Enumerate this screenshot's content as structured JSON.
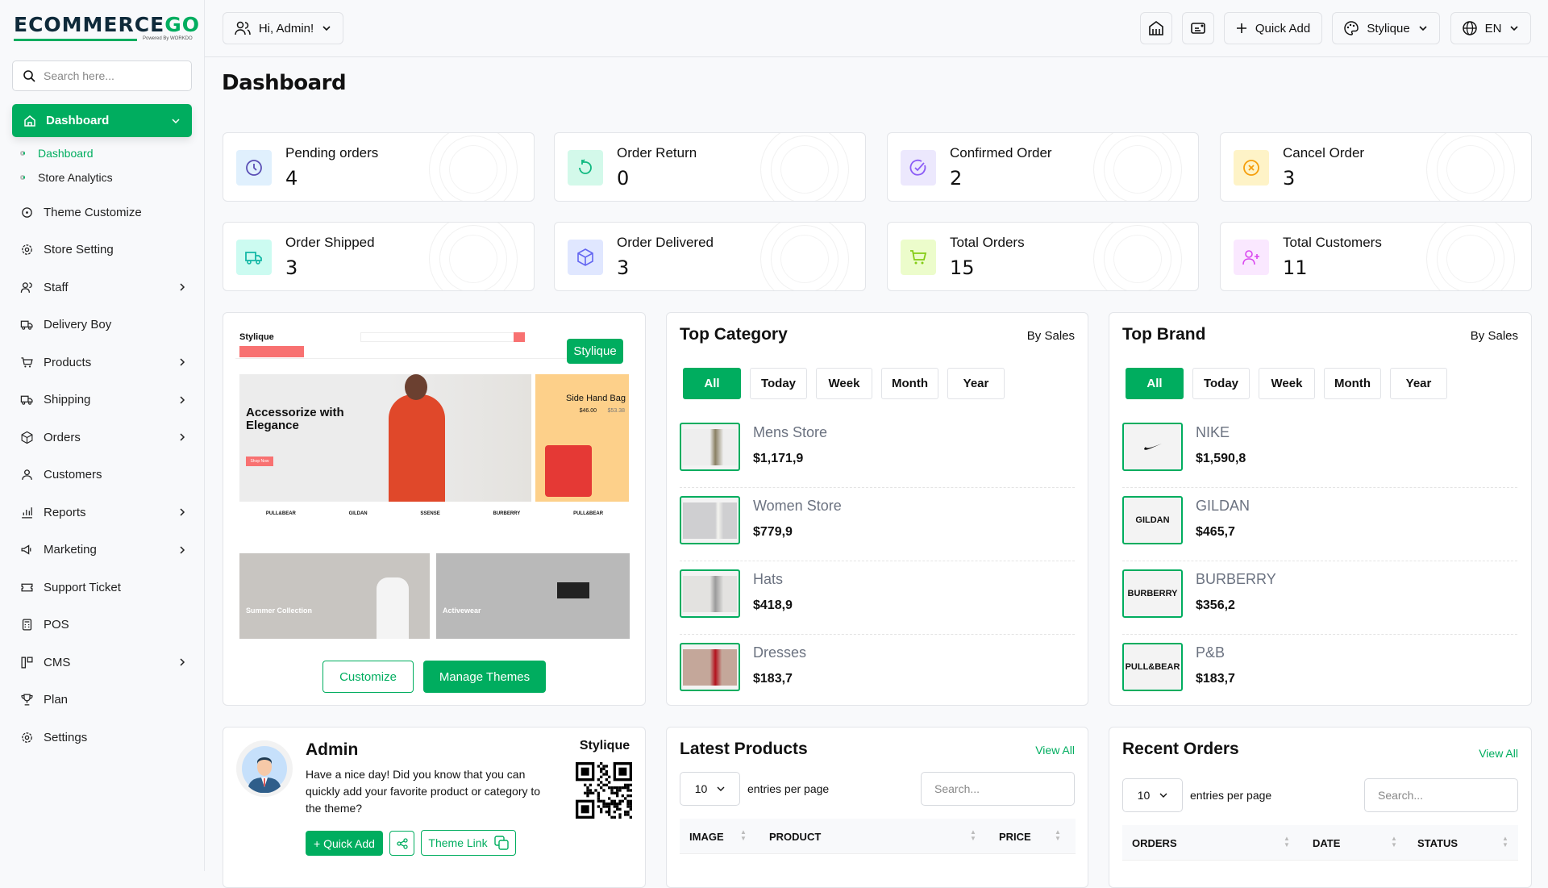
{
  "brand": {
    "logo_text": "ECOMMERCE",
    "logo_accent": "GO",
    "powered": "Powered By WORKDO",
    "accent": "#00ad5f"
  },
  "sidebar": {
    "search_placeholder": "Search here...",
    "active": {
      "label": "Dashboard",
      "icon": "home-icon"
    },
    "sub_items": [
      {
        "label": "Dashboard",
        "active": true
      },
      {
        "label": "Store Analytics"
      }
    ],
    "items": [
      {
        "label": "Theme Customize",
        "icon": "palette-icon",
        "chevron": false
      },
      {
        "label": "Store Setting",
        "icon": "gear-icon",
        "chevron": false
      },
      {
        "label": "Staff",
        "icon": "users-icon",
        "chevron": true
      },
      {
        "label": "Delivery Boy",
        "icon": "truck-icon",
        "chevron": false
      },
      {
        "label": "Products",
        "icon": "cart-icon",
        "chevron": true
      },
      {
        "label": "Shipping",
        "icon": "truck-icon",
        "chevron": true
      },
      {
        "label": "Orders",
        "icon": "box-icon",
        "chevron": true
      },
      {
        "label": "Customers",
        "icon": "user-icon",
        "chevron": false
      },
      {
        "label": "Reports",
        "icon": "chart-icon",
        "chevron": true
      },
      {
        "label": "Marketing",
        "icon": "megaphone-icon",
        "chevron": true
      },
      {
        "label": "Support Ticket",
        "icon": "ticket-icon",
        "chevron": false
      },
      {
        "label": "POS",
        "icon": "pos-icon",
        "chevron": false
      },
      {
        "label": "CMS",
        "icon": "layout-icon",
        "chevron": true
      },
      {
        "label": "Plan",
        "icon": "trophy-icon",
        "chevron": false
      },
      {
        "label": "Settings",
        "icon": "gear-icon",
        "chevron": false
      }
    ]
  },
  "header": {
    "greeting": "Hi, Admin!",
    "quick_add": "Quick Add",
    "theme": "Stylique",
    "language": "EN"
  },
  "page_title": "Dashboard",
  "stats": [
    {
      "label": "Pending orders",
      "value": "4",
      "icon": "clock-icon",
      "color": "#5b4fb5",
      "bg": "#e0f0fd"
    },
    {
      "label": "Order Return",
      "value": "0",
      "icon": "refresh-icon",
      "color": "#11b981",
      "bg": "#d3f9ea"
    },
    {
      "label": "Confirmed Order",
      "value": "2",
      "icon": "check-circle-icon",
      "color": "#8b5cf6",
      "bg": "#ece8fd"
    },
    {
      "label": "Cancel Order",
      "value": "3",
      "icon": "x-circle-icon",
      "color": "#f59e0b",
      "bg": "#fef3c7"
    },
    {
      "label": "Order Shipped",
      "value": "3",
      "icon": "truck-icon",
      "color": "#14b8a6",
      "bg": "#ccfbf1"
    },
    {
      "label": "Order Delivered",
      "value": "3",
      "icon": "box-icon",
      "color": "#6366f1",
      "bg": "#e0e7ff"
    },
    {
      "label": "Total Orders",
      "value": "15",
      "icon": "cart-icon",
      "color": "#84cc16",
      "bg": "#ecfccb"
    },
    {
      "label": "Total Customers",
      "value": "11",
      "icon": "user-plus-icon",
      "color": "#d946ef",
      "bg": "#fae8ff"
    }
  ],
  "theme_preview": {
    "badge": "Stylique",
    "site_name": "Stylique",
    "hero_title": "Accessorize with Elegance",
    "hero_btn": "Shop Now",
    "side_title": "Side Hand Bag",
    "side_price": "$46.00",
    "side_old": "$53.38",
    "brands": [
      "PULL&BEAR",
      "GILDAN",
      "SSENSE",
      "BURBERRY",
      "PULL&BEAR"
    ],
    "tile1": "Summer Collection",
    "tile2": "Activewear",
    "customize": "Customize",
    "manage": "Manage Themes"
  },
  "top_category": {
    "title": "Top Category",
    "by": "By Sales",
    "filters": [
      "All",
      "Today",
      "Week",
      "Month",
      "Year"
    ],
    "items": [
      {
        "name": "Mens Store",
        "price": "$1,171,9"
      },
      {
        "name": "Women Store",
        "price": "$779,9"
      },
      {
        "name": "Hats",
        "price": "$418,9"
      },
      {
        "name": "Dresses",
        "price": "$183,7"
      }
    ]
  },
  "top_brand": {
    "title": "Top Brand",
    "by": "By Sales",
    "filters": [
      "All",
      "Today",
      "Week",
      "Month",
      "Year"
    ],
    "items": [
      {
        "name": "NIKE",
        "logo": "",
        "price": "$1,590,8"
      },
      {
        "name": "GILDAN",
        "logo": "GILDAN",
        "price": "$465,7"
      },
      {
        "name": "BURBERRY",
        "logo": "BURBERRY",
        "price": "$356,2"
      },
      {
        "name": "P&B",
        "logo": "PULL&BEAR",
        "price": "$183,7"
      }
    ]
  },
  "admin_card": {
    "name": "Admin",
    "message": "Have a nice day! Did you know that you can quickly add your favorite product or category to the theme?",
    "store": "Stylique",
    "quick_add": "+ Quick Add",
    "theme_link": "Theme Link"
  },
  "latest_products": {
    "title": "Latest Products",
    "view_all": "View All",
    "entries": "10",
    "entries_label": "entries per page",
    "search_placeholder": "Search...",
    "columns": [
      "IMAGE",
      "PRODUCT",
      "PRICE"
    ]
  },
  "recent_orders": {
    "title": "Recent Orders",
    "view_all": "View All",
    "entries": "10",
    "entries_label": "entries per page",
    "search_placeholder": "Search...",
    "columns": [
      "ORDERS",
      "DATE",
      "STATUS"
    ]
  }
}
